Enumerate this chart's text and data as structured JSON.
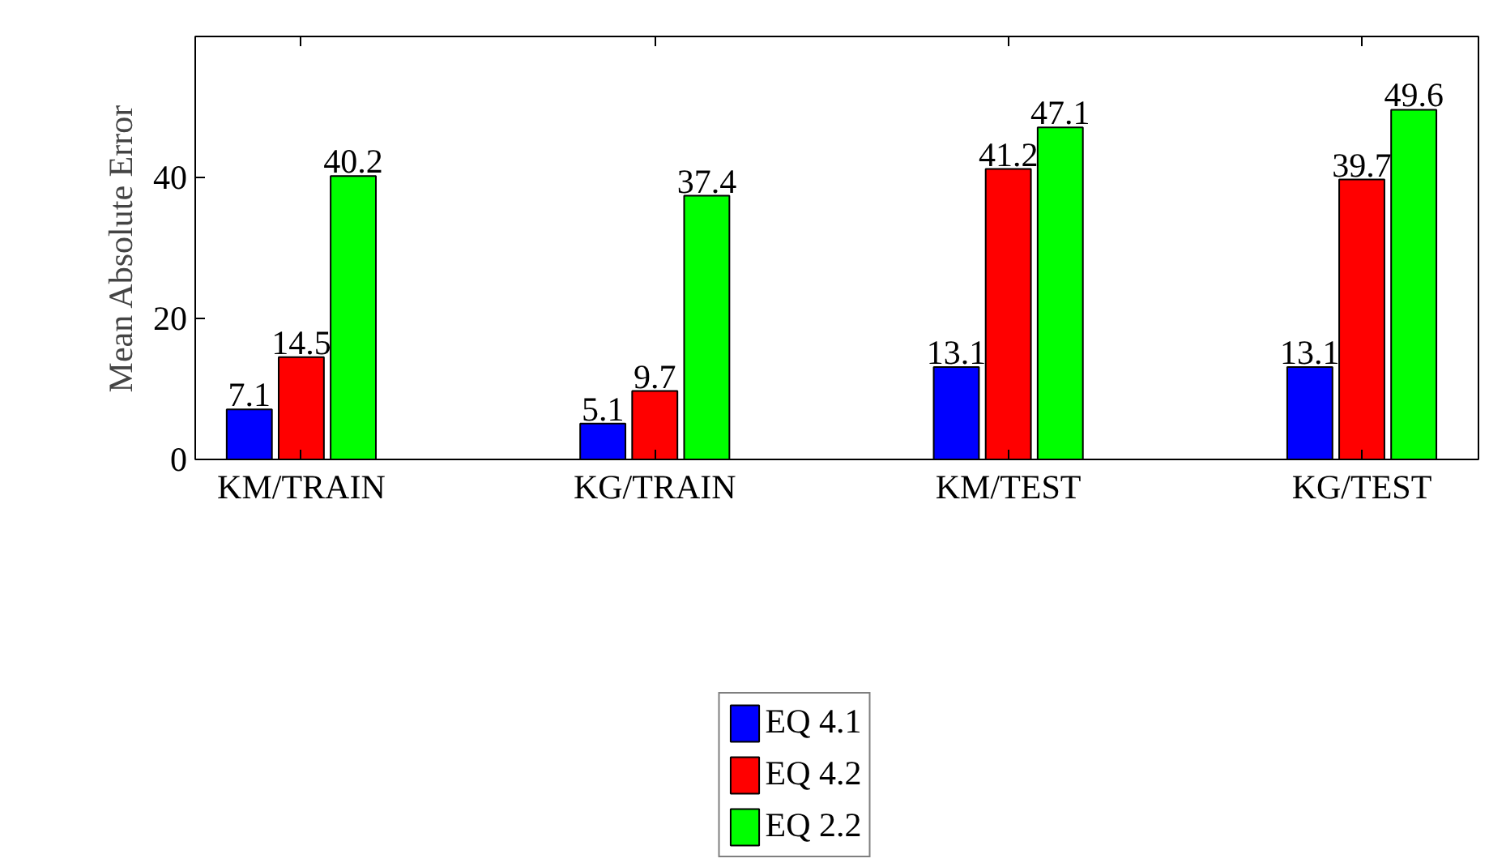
{
  "chart_data": {
    "type": "bar",
    "ylabel": "Mean Absolute Error",
    "categories": [
      "KM/TRAIN",
      "KG/TRAIN",
      "KM/TEST",
      "KG/TEST"
    ],
    "series": [
      {
        "name": "EQ 4.1",
        "color": "#0000ff",
        "values": [
          7.1,
          5.1,
          13.1,
          13.1
        ]
      },
      {
        "name": "EQ 4.2",
        "color": "#ff0000",
        "values": [
          14.5,
          9.7,
          41.2,
          39.7
        ]
      },
      {
        "name": "EQ 2.2",
        "color": "#00ff00",
        "values": [
          40.2,
          37.4,
          47.1,
          49.6
        ]
      }
    ],
    "ylim": [
      0,
      60
    ],
    "yticks": [
      0,
      20,
      40
    ],
    "data_labels": true,
    "grid": false,
    "legend": "bottom"
  }
}
